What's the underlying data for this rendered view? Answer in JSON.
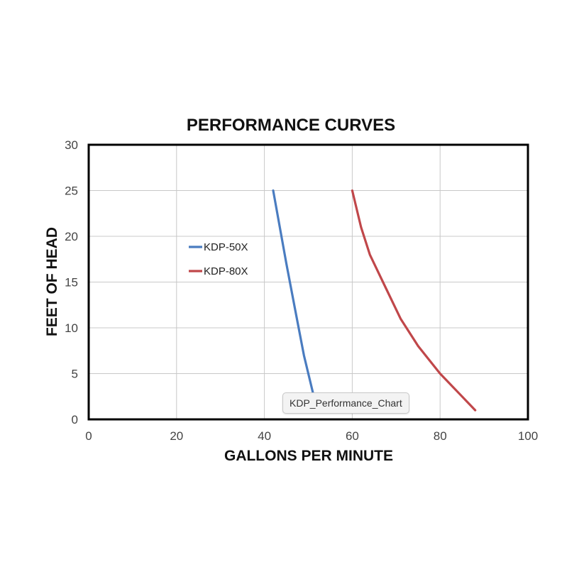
{
  "chart_data": {
    "type": "line",
    "title": "PERFORMANCE CURVES",
    "xlabel": "GALLONS PER MINUTE",
    "ylabel": "FEET OF HEAD",
    "xlim": [
      0,
      100
    ],
    "ylim": [
      0,
      30
    ],
    "xticks": [
      0,
      20,
      40,
      60,
      80,
      100
    ],
    "yticks": [
      0,
      5,
      10,
      15,
      20,
      25,
      30
    ],
    "grid": true,
    "legend_position": "left",
    "series": [
      {
        "name": "KDP-50X",
        "color": "#4a7cc0",
        "x": [
          42,
          43.5,
          45,
          47,
          49,
          50.5,
          52
        ],
        "y": [
          25,
          21,
          17,
          12,
          7,
          4,
          1
        ]
      },
      {
        "name": "KDP-80X",
        "color": "#c0474a",
        "x": [
          60,
          62,
          64,
          67,
          71,
          75,
          80,
          84,
          88
        ],
        "y": [
          25,
          21,
          18,
          15,
          11,
          8,
          5,
          3,
          1
        ]
      }
    ]
  },
  "tooltip": {
    "text": "KDP_Performance_Chart"
  }
}
